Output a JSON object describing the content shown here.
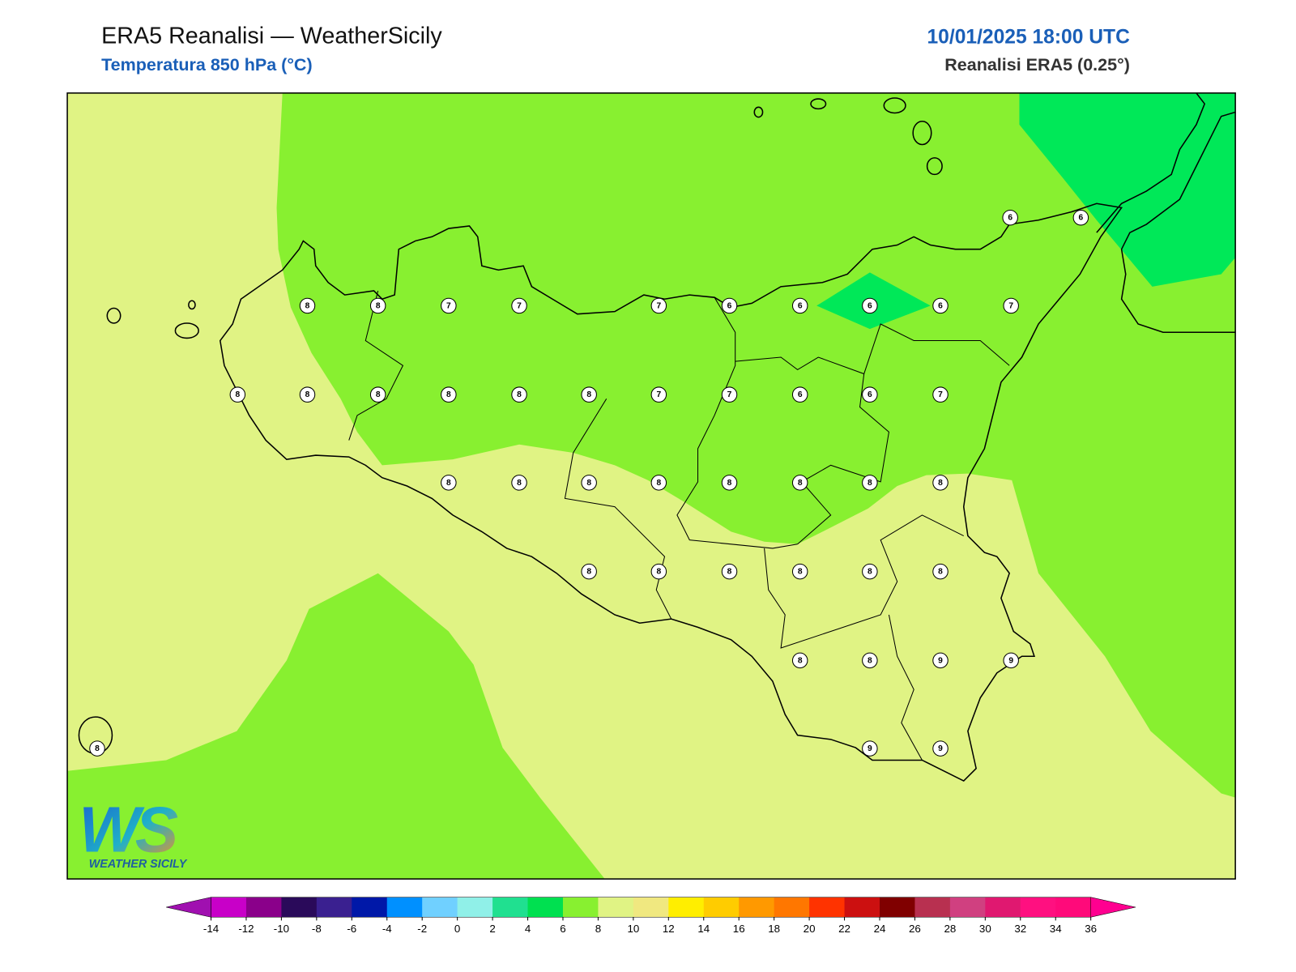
{
  "header": {
    "title": "ERA5 Reanalisi — WeatherSicily",
    "subtitle": "Temperatura 850 hPa (°C)",
    "datetime": "10/01/2025 18:00 UTC",
    "source": "Reanalisi ERA5 (0.25°)"
  },
  "stations": [
    8,
    8,
    7,
    7,
    7,
    6,
    6,
    6,
    6,
    7,
    6,
    6,
    8,
    8,
    8,
    8,
    8,
    8,
    7,
    7,
    6,
    6,
    7,
    8,
    8,
    8,
    8,
    8,
    8,
    8,
    8,
    8,
    8,
    8,
    8,
    8,
    8,
    8,
    8,
    9,
    9,
    9,
    9,
    8
  ],
  "colorbar": {
    "ticks": [
      -14,
      -12,
      -10,
      -8,
      -6,
      -4,
      -2,
      0,
      2,
      4,
      6,
      8,
      10,
      12,
      14,
      16,
      18,
      20,
      22,
      24,
      26,
      28,
      30,
      32,
      34,
      36
    ],
    "colors": [
      "#c800c8",
      "#8a008a",
      "#2a0a5a",
      "#3a2090",
      "#0018a8",
      "#0090ff",
      "#70d0ff",
      "#90f0e8",
      "#20e090",
      "#00e050",
      "#88f030",
      "#e0f384",
      "#f0e880",
      "#ffee00",
      "#ffcc00",
      "#ff9900",
      "#ff7700",
      "#ff3300",
      "#cc1010",
      "#800000",
      "#b83050",
      "#d04080",
      "#e01870",
      "#ff1080",
      "#ff0a7a"
    ],
    "under": "#a010b0",
    "over": "#ff0090"
  },
  "logo": {
    "mark": "WS",
    "text": "WEATHER SICILY"
  }
}
